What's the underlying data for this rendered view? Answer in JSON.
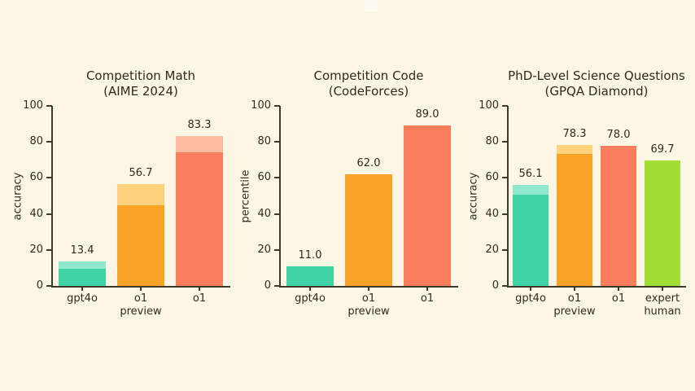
{
  "page": {
    "background": "#fcf7e5",
    "text_color": "#33281b",
    "axis_color": "#3f382c"
  },
  "chart_data": [
    {
      "type": "bar",
      "title": "Competition Math",
      "subtitle": "(AIME 2024)",
      "ylabel": "accuracy",
      "ylim": [
        0,
        100
      ],
      "yticks": [
        0,
        20,
        40,
        60,
        80,
        100
      ],
      "categories": [
        "gpt4o",
        "o1\npreview",
        "o1"
      ],
      "values": [
        13.4,
        56.7,
        83.3
      ],
      "solid_values": [
        9.3,
        44.6,
        74.4
      ],
      "labels": [
        "13.4",
        "56.7",
        "83.3"
      ],
      "bar_colors": [
        "#3ed4a6",
        "#fba327",
        "#fb7e5c"
      ],
      "bar_light_colors": [
        "#92e8cc",
        "#fed17c",
        "#fdbc9d"
      ],
      "legend": "none",
      "grid": false
    },
    {
      "type": "bar",
      "title": "Competition Code",
      "subtitle": "(CodeForces)",
      "ylabel": "percentile",
      "ylim": [
        0,
        100
      ],
      "yticks": [
        0,
        20,
        40,
        60,
        80,
        100
      ],
      "categories": [
        "gpt4o",
        "o1\npreview",
        "o1"
      ],
      "values": [
        11.0,
        62.0,
        89.0
      ],
      "solid_values": [
        11.0,
        62.0,
        89.0
      ],
      "labels": [
        "11.0",
        "62.0",
        "89.0"
      ],
      "bar_colors": [
        "#3ed4a6",
        "#fba327",
        "#fb7e5c"
      ],
      "bar_light_colors": [
        "#92e8cc",
        "#fed17c",
        "#fdbc9d"
      ],
      "legend": "none",
      "grid": false
    },
    {
      "type": "bar",
      "title": "PhD-Level Science Questions",
      "subtitle": "(GPQA Diamond)",
      "ylabel": "accuracy",
      "ylim": [
        0,
        100
      ],
      "yticks": [
        0,
        20,
        40,
        60,
        80,
        100
      ],
      "categories": [
        "gpt4o",
        "o1\npreview",
        "o1",
        "expert\nhuman"
      ],
      "values": [
        56.1,
        78.3,
        78.0,
        69.7
      ],
      "solid_values": [
        50.6,
        73.3,
        78.0,
        69.7
      ],
      "labels": [
        "56.1",
        "78.3",
        "78.0",
        "69.7"
      ],
      "bar_colors": [
        "#3ed4a6",
        "#fba327",
        "#fb7e5c",
        "#a2df34"
      ],
      "bar_light_colors": [
        "#92e8cc",
        "#fed17c",
        "#fdbc9d",
        "#a2df34"
      ],
      "legend": "none",
      "grid": false
    }
  ]
}
